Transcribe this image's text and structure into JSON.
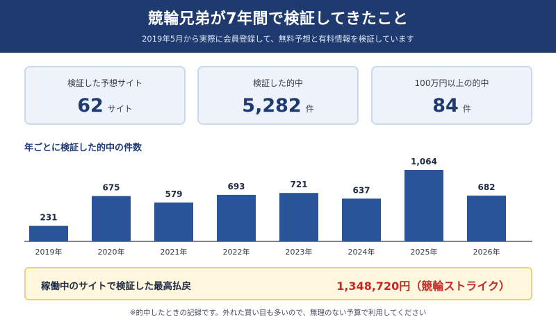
{
  "header": {
    "title": "競輪兄弟が7年間で検証してきたこと",
    "subtitle": "2019年5月から実際に会員登録して、無料予想と有料情報を検証しています"
  },
  "stats": [
    {
      "label": "検証した予想サイト",
      "value": "62",
      "unit": "サイト"
    },
    {
      "label": "検証した的中",
      "value": "5,282",
      "unit": "件"
    },
    {
      "label": "100万円以上の的中",
      "value": "84",
      "unit": "件"
    }
  ],
  "chart_title": "年ごとに検証した的中の件数",
  "chart_data": {
    "type": "bar",
    "categories": [
      "2019年",
      "2020年",
      "2021年",
      "2022年",
      "2023年",
      "2024年",
      "2025年",
      "2026年"
    ],
    "values": [
      231,
      675,
      579,
      693,
      721,
      637,
      1064,
      682
    ],
    "value_labels": [
      "231",
      "675",
      "579",
      "693",
      "721",
      "637",
      "1,064",
      "682"
    ],
    "title": "年ごとに検証した的中の件数",
    "xlabel": "",
    "ylabel": "",
    "ylim": [
      0,
      1064
    ],
    "grid": false,
    "legend": "none",
    "bar_color": "#2a5499"
  },
  "notice": {
    "label": "稼働中のサイトで検証した最高払戻",
    "value": "1,348,720円（競輪ストライク）"
  },
  "footnote": "※的中したときの記録です。外れた買い目も多いので、無理のない予算で利用してください",
  "colors": {
    "header_bg": "#1e3a6e",
    "accent": "#1e3a6e",
    "highlight": "#c62828"
  }
}
